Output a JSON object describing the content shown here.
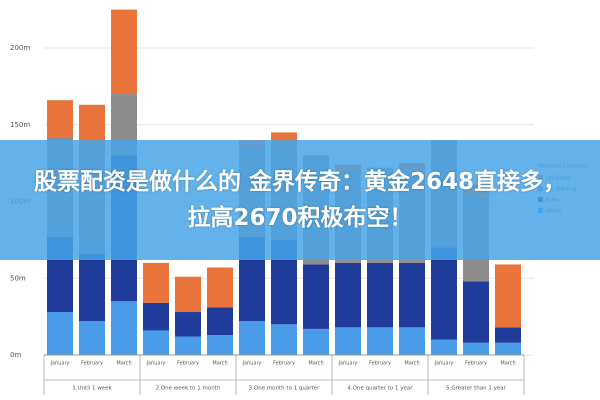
{
  "headline": [
    "股票配资是做什么的 金界传奇：黄金2648直接多，",
    "拉高2670积极布空！"
  ],
  "chart_data": {
    "type": "stacked_bar",
    "categories": [
      "January",
      "February",
      "March",
      "January",
      "February",
      "March",
      "January",
      "February",
      "March",
      "January",
      "February",
      "March",
      "January",
      "February",
      "March"
    ],
    "groups": [
      "1.Until 1 week",
      "2.One week to 1 month",
      "3.One month to 1 quarter",
      "4.One quarter to 1 year",
      "5.Greater than 1 year"
    ],
    "legend_title": "Nominal Currency",
    "series": [
      {
        "name": "Other",
        "color": "#4a9be8",
        "values": [
          28,
          22,
          35,
          16,
          12,
          13,
          22,
          20,
          17,
          18,
          18,
          18,
          10,
          8,
          8
        ]
      },
      {
        "name": "Euro",
        "color": "#1f3c9a",
        "values": [
          49,
          44,
          95,
          18,
          16,
          18,
          55,
          55,
          42,
          42,
          42,
          42,
          60,
          40,
          10
        ]
      },
      {
        "name": "UK Sterling",
        "color": "#8c8c8c",
        "values": [
          65,
          72,
          40,
          0,
          0,
          0,
          58,
          62,
          71,
          60,
          62,
          60,
          70,
          55,
          0
        ]
      },
      {
        "name": "US Dollar",
        "color": "#e8743b",
        "values": [
          24,
          25,
          55,
          26,
          23,
          26,
          5,
          8,
          0,
          4,
          0,
          5,
          0,
          8,
          41
        ]
      }
    ],
    "ylim": [
      0,
      200
    ],
    "yticks": [
      {
        "value": 0,
        "label": "0m"
      },
      {
        "value": 50,
        "label": "50m"
      },
      {
        "value": 100,
        "label": "100m"
      },
      {
        "value": 150,
        "label": "150m"
      },
      {
        "value": 200,
        "label": "200m"
      }
    ],
    "grid": true
  }
}
